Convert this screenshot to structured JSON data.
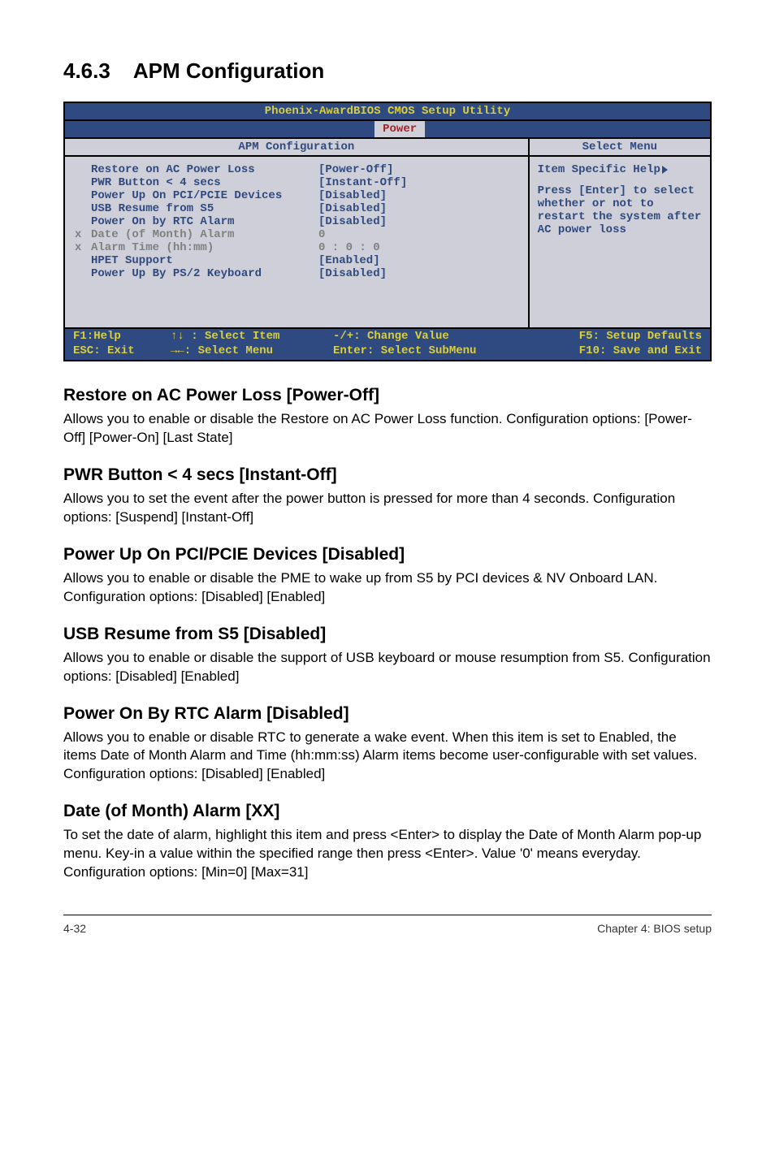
{
  "heading": {
    "num": "4.6.3",
    "title": "APM Configuration"
  },
  "bios": {
    "header": "Phoenix-AwardBIOS CMOS Setup Utility",
    "tab": "Power",
    "panel_title": "APM Configuration",
    "select_menu": "Select Menu",
    "rows": [
      {
        "prefix": "",
        "label": "Restore on AC Power Loss",
        "value": "[Power-Off]",
        "dim": false
      },
      {
        "prefix": "",
        "label": "PWR Button < 4 secs",
        "value": "[Instant-Off]",
        "dim": false
      },
      {
        "prefix": "",
        "label": "Power Up On PCI/PCIE Devices",
        "value": "[Disabled]",
        "dim": false
      },
      {
        "prefix": "",
        "label": "USB Resume from S5",
        "value": "[Disabled]",
        "dim": false
      },
      {
        "prefix": "",
        "label": "Power On by RTC Alarm",
        "value": "[Disabled]",
        "dim": false
      },
      {
        "prefix": "x",
        "label": "Date (of Month) Alarm",
        "value": "   0",
        "dim": true
      },
      {
        "prefix": "x",
        "label": "Alarm Time (hh:mm)",
        "value": " 0 : 0 : 0",
        "dim": true
      },
      {
        "prefix": "",
        "label": "HPET Support",
        "value": "[Enabled]",
        "dim": false
      },
      {
        "prefix": "",
        "label": "Power Up By PS/2 Keyboard",
        "value": "[Disabled]",
        "dim": false
      }
    ],
    "help": {
      "title": "Item Specific Help",
      "text": "Press [Enter] to select whether or not to restart the system after AC power loss"
    },
    "foot": {
      "r1c1": "F1:Help",
      "r1c2": "↑↓ : Select Item",
      "r1c3": "-/+: Change Value",
      "r1c4": "F5: Setup Defaults",
      "r2c1": "ESC: Exit",
      "r2c2": "→←: Select Menu",
      "r2c3": "Enter: Select SubMenu",
      "r2c4": "F10: Save and Exit"
    }
  },
  "sections": [
    {
      "h": "Restore on AC Power Loss [Power-Off]",
      "p": "Allows you to enable or disable the Restore on AC Power Loss function. Configuration options: [Power-Off] [Power-On] [Last State]"
    },
    {
      "h": "PWR Button < 4 secs [Instant-Off]",
      "p": "Allows you to set the event after the power button is pressed for more than 4 seconds. Configuration options: [Suspend] [Instant-Off]"
    },
    {
      "h": "Power Up On PCI/PCIE Devices [Disabled]",
      "p": "Allows you to enable or disable the PME to wake up from S5 by PCI devices & NV Onboard LAN. Configuration options: [Disabled] [Enabled]"
    },
    {
      "h": "USB Resume from S5 [Disabled]",
      "p": "Allows you to enable or disable the support of USB keyboard or mouse resumption from S5. Configuration options: [Disabled] [Enabled]"
    },
    {
      "h": "Power On By RTC Alarm [Disabled]",
      "p": "Allows you to enable or disable RTC to generate a wake event. When this item is set to Enabled, the items Date of Month Alarm and Time (hh:mm:ss) Alarm items become user-configurable with set values.\nConfiguration options: [Disabled] [Enabled]"
    },
    {
      "h": "Date (of Month) Alarm [XX]",
      "p": "To set the date of alarm, highlight this item and press <Enter> to display the Date of Month Alarm pop-up menu. Key-in a value within the specified range then press <Enter>. Value '0' means everyday. Configuration options: [Min=0] [Max=31]"
    }
  ],
  "footer": {
    "left": "4-32",
    "right": "Chapter 4: BIOS setup"
  },
  "colors": {
    "bios_blue": "#2e4a81",
    "bios_yellow": "#d9cf3f",
    "bios_panel": "#cecfd8",
    "dim": "#808080"
  }
}
